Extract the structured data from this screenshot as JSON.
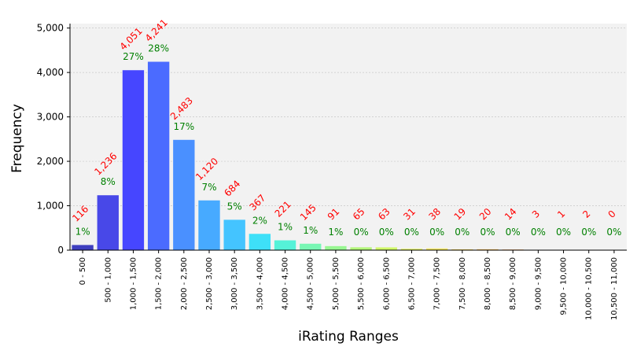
{
  "chart_data": {
    "type": "bar",
    "xlabel": "iRating Ranges",
    "ylabel": "Frequency",
    "ylim": [
      0,
      5100
    ],
    "yticks": [
      0,
      1000,
      2000,
      3000,
      4000,
      5000
    ],
    "ytick_labels": [
      "0",
      "1,000",
      "2,000",
      "3,000",
      "4,000",
      "5,000"
    ],
    "grid": true,
    "categories": [
      "0 - 500",
      "500 - 1,000",
      "1,000 - 1,500",
      "1,500 - 2,000",
      "2,000 - 2,500",
      "2,500 - 3,000",
      "3,000 - 3,500",
      "3,500 - 4,000",
      "4,000 - 4,500",
      "4,500 - 5,000",
      "5,000 - 5,500",
      "5,500 - 6,000",
      "6,000 - 6,500",
      "6,500 - 7,000",
      "7,000 - 7,500",
      "7,500 - 8,000",
      "8,000 - 8,500",
      "8,500 - 9,000",
      "9,000 - 9,500",
      "9,500 - 10,000",
      "10,000 - 10,500",
      "10,500 - 11,000"
    ],
    "values": [
      116,
      1236,
      4051,
      4241,
      2483,
      1120,
      684,
      367,
      221,
      145,
      91,
      65,
      63,
      31,
      38,
      19,
      20,
      14,
      3,
      1,
      2,
      0
    ],
    "count_labels": [
      "116",
      "1,236",
      "4,051",
      "4,241",
      "2,483",
      "1,120",
      "684",
      "367",
      "221",
      "145",
      "91",
      "65",
      "63",
      "31",
      "38",
      "19",
      "20",
      "14",
      "3",
      "1",
      "2",
      "0"
    ],
    "percent_labels": [
      "1%",
      "8%",
      "27%",
      "28%",
      "17%",
      "7%",
      "5%",
      "2%",
      "1%",
      "1%",
      "1%",
      "0%",
      "0%",
      "0%",
      "0%",
      "0%",
      "0%",
      "0%",
      "0%",
      "0%",
      "0%",
      "0%"
    ],
    "bar_colors": [
      "#3e3ebf",
      "#4848e8",
      "#4646ff",
      "#4b6bff",
      "#4a90ff",
      "#47aaff",
      "#44c4ff",
      "#3ee0f8",
      "#55f2d8",
      "#78f7b4",
      "#98f792",
      "#b4f77a",
      "#d0f868",
      "#e5f460",
      "#f4e85e",
      "#f8d45a",
      "#f8bc55",
      "#f8a450",
      "#f78a4c",
      "#f57048",
      "#f25a45",
      "#ef4444"
    ],
    "colors": {
      "count_label": "#ff0000",
      "percent_label": "#008000",
      "plot_background": "#f2f2f2",
      "grid": "#c8c8c8"
    }
  }
}
